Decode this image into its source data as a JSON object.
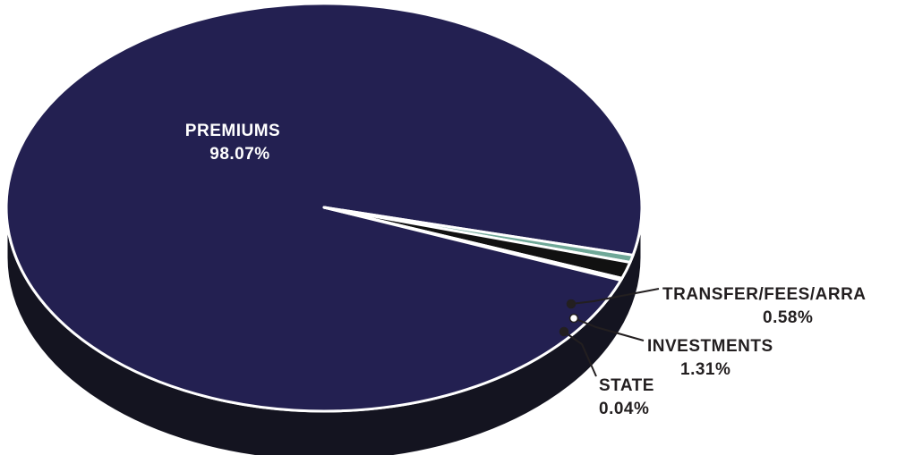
{
  "chart_data": {
    "type": "pie",
    "style": "3d",
    "slices": [
      {
        "label": "PREMIUMS",
        "value": 98.07,
        "display": "98.07%",
        "color": "#232051"
      },
      {
        "label": "TRANSFER/FEES/ARRA",
        "value": 0.58,
        "display": "0.58%",
        "color": "#6fa898"
      },
      {
        "label": "INVESTMENTS",
        "value": 1.31,
        "display": "1.31%",
        "color": "#111111"
      },
      {
        "label": "STATE",
        "value": 0.04,
        "display": "0.04%",
        "color": "#9fc3c7"
      }
    ],
    "colors": {
      "side": "#141420",
      "outline": "#ffffff",
      "leader": "#231f20"
    }
  }
}
